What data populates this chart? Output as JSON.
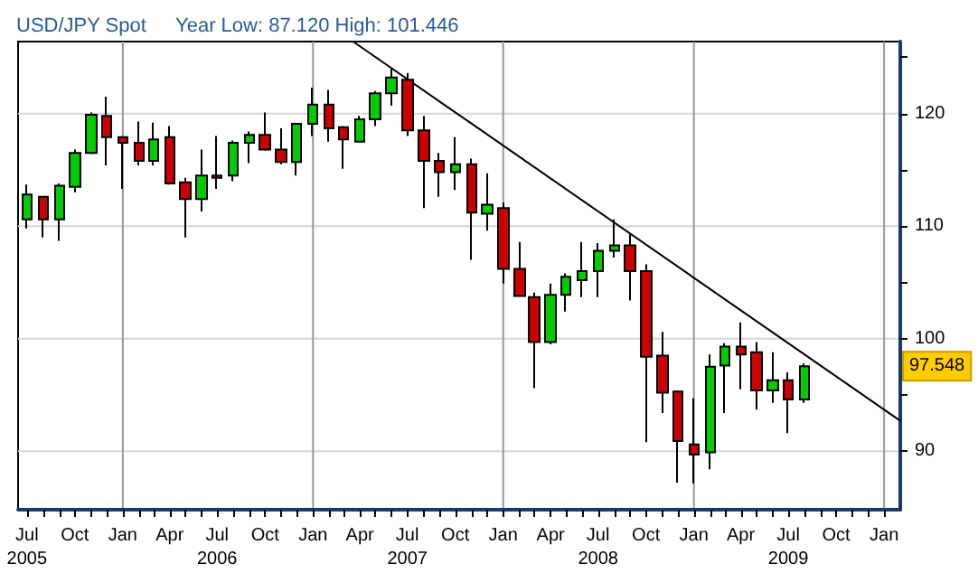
{
  "chart_data": {
    "type": "candlestick",
    "title": "USD/JPY Spot",
    "subtitle": "Year Low: 87.120 High: 101.446",
    "x": [
      "2005-07",
      "2005-08",
      "2005-09",
      "2005-10",
      "2005-11",
      "2005-12",
      "2006-01",
      "2006-02",
      "2006-03",
      "2006-04",
      "2006-05",
      "2006-06",
      "2006-07",
      "2006-08",
      "2006-09",
      "2006-10",
      "2006-11",
      "2006-12",
      "2007-01",
      "2007-02",
      "2007-03",
      "2007-04",
      "2007-05",
      "2007-06",
      "2007-07",
      "2007-08",
      "2007-09",
      "2007-10",
      "2007-11",
      "2007-12",
      "2008-01",
      "2008-02",
      "2008-03",
      "2008-04",
      "2008-05",
      "2008-06",
      "2008-07",
      "2008-08",
      "2008-09",
      "2008-10",
      "2008-11",
      "2008-12",
      "2009-01",
      "2009-02",
      "2009-03",
      "2009-04",
      "2009-05",
      "2009-06",
      "2009-07",
      "2009-08"
    ],
    "ohlc": [
      [
        110.6,
        113.7,
        109.8,
        112.8
      ],
      [
        112.6,
        112.6,
        109.0,
        110.6
      ],
      [
        110.6,
        113.8,
        108.7,
        113.6
      ],
      [
        113.5,
        116.8,
        113.0,
        116.5
      ],
      [
        116.5,
        120.1,
        116.4,
        119.9
      ],
      [
        119.8,
        121.5,
        115.4,
        117.9
      ],
      [
        117.9,
        118.0,
        113.3,
        117.4
      ],
      [
        117.4,
        119.3,
        115.4,
        115.8
      ],
      [
        115.8,
        119.2,
        115.4,
        117.7
      ],
      [
        117.9,
        118.9,
        113.7,
        113.8
      ],
      [
        113.9,
        114.3,
        109.0,
        112.4
      ],
      [
        112.4,
        116.8,
        111.3,
        114.5
      ],
      [
        114.5,
        118.0,
        113.3,
        114.3
      ],
      [
        114.5,
        117.6,
        114.0,
        117.4
      ],
      [
        117.4,
        118.4,
        115.6,
        118.1
      ],
      [
        118.1,
        120.1,
        116.7,
        116.8
      ],
      [
        116.8,
        118.7,
        115.5,
        115.7
      ],
      [
        115.7,
        119.2,
        114.5,
        119.1
      ],
      [
        119.1,
        122.3,
        118.0,
        120.8
      ],
      [
        120.8,
        122.1,
        117.5,
        118.7
      ],
      [
        118.8,
        118.9,
        115.1,
        117.7
      ],
      [
        117.5,
        119.8,
        117.5,
        119.5
      ],
      [
        119.5,
        122.0,
        118.9,
        121.8
      ],
      [
        121.8,
        124.0,
        120.7,
        123.2
      ],
      [
        123.0,
        123.6,
        118.0,
        118.5
      ],
      [
        118.5,
        119.8,
        111.6,
        115.8
      ],
      [
        115.8,
        116.5,
        112.6,
        114.8
      ],
      [
        114.8,
        117.9,
        113.2,
        115.5
      ],
      [
        115.5,
        116.0,
        107.0,
        111.2
      ],
      [
        111.1,
        114.7,
        109.6,
        111.9
      ],
      [
        111.6,
        112.1,
        104.9,
        106.2
      ],
      [
        106.2,
        108.6,
        103.8,
        103.8
      ],
      [
        103.7,
        104.1,
        95.6,
        99.7
      ],
      [
        99.7,
        104.9,
        99.5,
        103.9
      ],
      [
        103.9,
        105.8,
        102.4,
        105.5
      ],
      [
        105.2,
        108.6,
        103.7,
        106.0
      ],
      [
        106.0,
        108.5,
        103.7,
        107.8
      ],
      [
        107.8,
        110.6,
        107.2,
        108.3
      ],
      [
        108.3,
        109.3,
        103.4,
        106.0
      ],
      [
        106.0,
        106.6,
        90.8,
        98.4
      ],
      [
        98.5,
        100.6,
        93.4,
        95.2
      ],
      [
        95.3,
        95.4,
        87.2,
        90.9
      ],
      [
        90.6,
        94.7,
        87.12,
        89.7
      ],
      [
        89.9,
        98.6,
        88.4,
        97.5
      ],
      [
        97.6,
        99.6,
        93.4,
        99.3
      ],
      [
        99.3,
        101.446,
        95.5,
        98.6
      ],
      [
        98.8,
        99.7,
        93.7,
        95.4
      ],
      [
        95.4,
        98.8,
        94.3,
        96.3
      ],
      [
        96.3,
        97.0,
        91.6,
        94.6
      ],
      [
        94.6,
        97.8,
        94.3,
        97.548
      ]
    ],
    "colors": [
      "#00cc00",
      "#cc0000",
      "#00cc00",
      "#00cc00",
      "#00cc00",
      "#cc0000",
      "#cc0000",
      "#cc0000",
      "#00cc00",
      "#cc0000",
      "#cc0000",
      "#00cc00",
      "#cc0000",
      "#00cc00",
      "#00cc00",
      "#cc0000",
      "#cc0000",
      "#00cc00",
      "#00cc00",
      "#cc0000",
      "#cc0000",
      "#00cc00",
      "#00cc00",
      "#00cc00",
      "#cc0000",
      "#cc0000",
      "#cc0000",
      "#00cc00",
      "#cc0000",
      "#00cc00",
      "#cc0000",
      "#cc0000",
      "#cc0000",
      "#00cc00",
      "#00cc00",
      "#00cc00",
      "#00cc00",
      "#00cc00",
      "#cc0000",
      "#cc0000",
      "#cc0000",
      "#cc0000",
      "#cc0000",
      "#00cc00",
      "#00cc00",
      "#cc0000",
      "#cc0000",
      "#00cc00",
      "#cc0000",
      "#00cc00"
    ],
    "series": [
      {
        "type": "line",
        "color": "#000000",
        "x": [
          "2007-03-19",
          "2010-02-01"
        ],
        "values": [
          126.4,
          92.7
        ]
      }
    ],
    "xlim": [
      "2005-06-14",
      "2010-02-01"
    ],
    "xticks": [
      {
        "value": "2005-07",
        "label": "Jul\n2005"
      },
      {
        "value": "2005-08",
        "label": null
      },
      {
        "value": "2005-09",
        "label": null
      },
      {
        "value": "2005-10",
        "label": "Oct"
      },
      {
        "value": "2005-11",
        "label": null
      },
      {
        "value": "2005-12",
        "label": null
      },
      {
        "value": "2006-01",
        "label": "Jan"
      },
      {
        "value": "2006-02",
        "label": null
      },
      {
        "value": "2006-03",
        "label": null
      },
      {
        "value": "2006-04",
        "label": "Apr"
      },
      {
        "value": "2006-05",
        "label": null
      },
      {
        "value": "2006-06",
        "label": null
      },
      {
        "value": "2006-07",
        "label": "Jul\n2006"
      },
      {
        "value": "2006-08",
        "label": null
      },
      {
        "value": "2006-09",
        "label": null
      },
      {
        "value": "2006-10",
        "label": "Oct"
      },
      {
        "value": "2006-11",
        "label": null
      },
      {
        "value": "2006-12",
        "label": null
      },
      {
        "value": "2007-01",
        "label": "Jan"
      },
      {
        "value": "2007-02",
        "label": null
      },
      {
        "value": "2007-03",
        "label": null
      },
      {
        "value": "2007-04",
        "label": "Apr"
      },
      {
        "value": "2007-05",
        "label": null
      },
      {
        "value": "2007-06",
        "label": null
      },
      {
        "value": "2007-07",
        "label": "Jul\n2007"
      },
      {
        "value": "2007-08",
        "label": null
      },
      {
        "value": "2007-09",
        "label": null
      },
      {
        "value": "2007-10",
        "label": "Oct"
      },
      {
        "value": "2007-11",
        "label": null
      },
      {
        "value": "2007-12",
        "label": null
      },
      {
        "value": "2008-01",
        "label": "Jan"
      },
      {
        "value": "2008-02",
        "label": null
      },
      {
        "value": "2008-03",
        "label": null
      },
      {
        "value": "2008-04",
        "label": "Apr"
      },
      {
        "value": "2008-05",
        "label": null
      },
      {
        "value": "2008-06",
        "label": null
      },
      {
        "value": "2008-07",
        "label": "Jul\n2008"
      },
      {
        "value": "2008-08",
        "label": null
      },
      {
        "value": "2008-09",
        "label": null
      },
      {
        "value": "2008-10",
        "label": "Oct"
      },
      {
        "value": "2008-11",
        "label": null
      },
      {
        "value": "2008-12",
        "label": null
      },
      {
        "value": "2009-01",
        "label": "Jan"
      },
      {
        "value": "2009-02",
        "label": null
      },
      {
        "value": "2009-03",
        "label": null
      },
      {
        "value": "2009-04",
        "label": "Apr"
      },
      {
        "value": "2009-05",
        "label": null
      },
      {
        "value": "2009-06",
        "label": null
      },
      {
        "value": "2009-07",
        "label": "Jul\n2009"
      },
      {
        "value": "2009-08",
        "label": null
      },
      {
        "value": "2009-09",
        "label": null
      },
      {
        "value": "2009-10",
        "label": "Oct"
      },
      {
        "value": "2009-11",
        "label": null
      },
      {
        "value": "2009-12",
        "label": null
      },
      {
        "value": "2010-01",
        "label": "Jan"
      }
    ],
    "ylim": [
      84.8,
      126.4
    ],
    "yticks": [
      90,
      {
        "value": 95,
        "label": null
      },
      100,
      {
        "value": 105,
        "label": null
      },
      110,
      {
        "value": 115,
        "label": null
      },
      120,
      {
        "value": 125,
        "label": null
      }
    ],
    "grid": true,
    "annotations": [
      "97.548"
    ]
  }
}
